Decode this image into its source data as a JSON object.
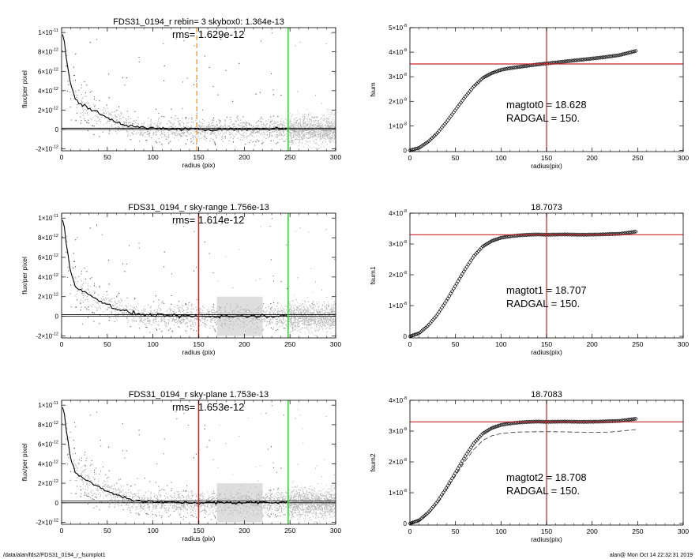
{
  "footer": {
    "path": "/data/alan/fds2/FDS31_0194_r_fsumplot1",
    "stamp": "alan@  Mon Oct 14 22:32:31 2019"
  },
  "colors": {
    "red": "#cc2222",
    "green": "#22dd22",
    "orange": "#f0a050",
    "point_dark": "#555555",
    "point_light": "#a8a8a8"
  },
  "chart_data": [
    {
      "type": "scatter",
      "title": "FDS31_0194_r rebin= 3    skybox0:  1.364e-13",
      "annotation": "rms= 1.629e-12",
      "xlabel": "radius (pix)",
      "ylabel": "flux/per pixel",
      "xlim": [
        0,
        300
      ],
      "ylim": [
        -2.2e-12,
        1.05e-11
      ],
      "xticks": [
        0,
        50,
        100,
        150,
        200,
        250,
        300
      ],
      "xticklabels": [
        "0",
        "50",
        "100",
        "150",
        "200",
        "250",
        "300"
      ],
      "yticks": [
        -2e-12,
        0,
        2e-12,
        4e-12,
        6e-12,
        8e-12,
        1e-11
      ],
      "yticklabels": [
        [
          "-2×10",
          "-12"
        ],
        [
          "0",
          ""
        ],
        [
          "2×10",
          "-12"
        ],
        [
          "4×10",
          "-12"
        ],
        [
          "6×10",
          "-12"
        ],
        [
          "8×10",
          "-12"
        ],
        [
          "1×10",
          "-11"
        ]
      ],
      "vlines": [
        {
          "x": 148,
          "color": "#f0a050",
          "dashed": true
        },
        {
          "x": 248,
          "color": "#22dd22",
          "dashed": false
        }
      ],
      "zero_lines": [
        0,
        1.364e-13
      ],
      "profile": {
        "r": [
          2,
          5,
          10,
          15,
          20,
          30,
          40,
          50,
          60,
          70,
          80,
          90,
          100,
          120,
          150,
          200,
          248
        ],
        "v": [
          9.8e-12,
          7.5e-12,
          4.5e-12,
          3.1e-12,
          2.7e-12,
          2.2e-12,
          1.7e-12,
          1.2e-12,
          8e-13,
          5e-13,
          3e-13,
          1.5e-13,
          1e-13,
          5e-14,
          0,
          2e-14,
          1e-13
        ]
      },
      "band_shading": []
    },
    {
      "type": "line",
      "title": "",
      "xlabel": "radius(pix)",
      "ylabel": "fsum",
      "xlim": [
        0,
        300
      ],
      "ylim": [
        -5e-10,
        5e-08
      ],
      "xticks": [
        0,
        50,
        100,
        150,
        200,
        250,
        300
      ],
      "xticklabels": [
        "0",
        "50",
        "100",
        "150",
        "200",
        "250",
        "300"
      ],
      "yticks": [
        0,
        1e-08,
        2e-08,
        3e-08,
        4e-08,
        5e-08
      ],
      "yticklabels": [
        [
          "0",
          ""
        ],
        [
          "1×10",
          "-8"
        ],
        [
          "2×10",
          "-8"
        ],
        [
          "3×10",
          "-8"
        ],
        [
          "4×10",
          "-8"
        ],
        [
          "5×10",
          "-8"
        ]
      ],
      "vline_x": 150,
      "hline_y": 3.52e-08,
      "annotation_lines": [
        "magtot0 =  18.628",
        "RADGAL =    150."
      ],
      "curve": {
        "x": [
          0,
          10,
          20,
          30,
          40,
          50,
          60,
          70,
          80,
          90,
          100,
          110,
          120,
          130,
          140,
          150,
          170,
          190,
          210,
          230,
          248
        ],
        "y": [
          0,
          1e-09,
          3.5e-09,
          7e-09,
          1.15e-08,
          1.65e-08,
          2.15e-08,
          2.6e-08,
          2.95e-08,
          3.15e-08,
          3.28e-08,
          3.35e-08,
          3.4e-08,
          3.45e-08,
          3.5e-08,
          3.54e-08,
          3.62e-08,
          3.7e-08,
          3.78e-08,
          3.88e-08,
          4.05e-08
        ]
      },
      "dashed_curve": null
    },
    {
      "type": "scatter",
      "title": "FDS31_0194_r sky-range  1.756e-13",
      "annotation": "rms= 1.614e-12",
      "xlabel": "radius (pix)",
      "ylabel": "flux/per pixel",
      "xlim": [
        0,
        300
      ],
      "ylim": [
        -2.2e-12,
        1.05e-11
      ],
      "xticks": [
        0,
        50,
        100,
        150,
        200,
        250,
        300
      ],
      "xticklabels": [
        "0",
        "50",
        "100",
        "150",
        "200",
        "250",
        "300"
      ],
      "yticks": [
        -2e-12,
        0,
        2e-12,
        4e-12,
        6e-12,
        8e-12,
        1e-11
      ],
      "yticklabels": [
        [
          "-2×10",
          "-12"
        ],
        [
          "0",
          ""
        ],
        [
          "2×10",
          "-12"
        ],
        [
          "4×10",
          "-12"
        ],
        [
          "6×10",
          "-12"
        ],
        [
          "8×10",
          "-12"
        ],
        [
          "1×10",
          "-11"
        ]
      ],
      "vlines": [
        {
          "x": 150,
          "color": "#cc2222",
          "dashed": false
        },
        {
          "x": 248,
          "color": "#22dd22",
          "dashed": false
        }
      ],
      "zero_lines": [
        0,
        1.756e-13
      ],
      "profile": {
        "r": [
          2,
          5,
          10,
          15,
          20,
          30,
          40,
          50,
          60,
          70,
          80,
          90,
          100,
          120,
          150,
          200,
          248
        ],
        "v": [
          9.8e-12,
          7.5e-12,
          4.5e-12,
          3.1e-12,
          2.7e-12,
          2.2e-12,
          1.7e-12,
          1.2e-12,
          8e-13,
          5e-13,
          3e-13,
          1.5e-13,
          1e-13,
          5e-14,
          0,
          2e-14,
          1e-13
        ]
      },
      "band_shading": [
        [
          170,
          220
        ]
      ]
    },
    {
      "type": "line",
      "title": "18.7073",
      "xlabel": "radius(pix)",
      "ylabel": "fsum1",
      "xlim": [
        0,
        300
      ],
      "ylim": [
        -5e-10,
        4e-08
      ],
      "xticks": [
        0,
        50,
        100,
        150,
        200,
        250,
        300
      ],
      "xticklabels": [
        "0",
        "50",
        "100",
        "150",
        "200",
        "250",
        "300"
      ],
      "yticks": [
        0,
        1e-08,
        2e-08,
        3e-08,
        4e-08
      ],
      "yticklabels": [
        [
          "0",
          ""
        ],
        [
          "1×10",
          "-8"
        ],
        [
          "2×10",
          "-8"
        ],
        [
          "3×10",
          "-8"
        ],
        [
          "4×10",
          "-8"
        ]
      ],
      "vline_x": 150,
      "hline_y": 3.3e-08,
      "annotation_lines": [
        "magtot1 =  18.707",
        "RADGAL =    150."
      ],
      "curve": {
        "x": [
          0,
          10,
          20,
          30,
          40,
          50,
          60,
          70,
          80,
          90,
          100,
          110,
          120,
          130,
          140,
          150,
          170,
          190,
          210,
          230,
          248
        ],
        "y": [
          0,
          1e-09,
          3.5e-09,
          7e-09,
          1.15e-08,
          1.65e-08,
          2.15e-08,
          2.6e-08,
          2.92e-08,
          3.1e-08,
          3.2e-08,
          3.25e-08,
          3.28e-08,
          3.3e-08,
          3.31e-08,
          3.3e-08,
          3.31e-08,
          3.3e-08,
          3.31e-08,
          3.33e-08,
          3.4e-08
        ]
      },
      "dashed_curve": null
    },
    {
      "type": "scatter",
      "title": "FDS31_0194_r sky-plane  1.753e-13",
      "annotation": "rms= 1.653e-12",
      "xlabel": "radius (pix)",
      "ylabel": "flux/per pixel",
      "xlim": [
        0,
        300
      ],
      "ylim": [
        -2.2e-12,
        1.05e-11
      ],
      "xticks": [
        0,
        50,
        100,
        150,
        200,
        250,
        300
      ],
      "xticklabels": [
        "0",
        "50",
        "100",
        "150",
        "200",
        "250",
        "300"
      ],
      "yticks": [
        -2e-12,
        0,
        2e-12,
        4e-12,
        6e-12,
        8e-12,
        1e-11
      ],
      "yticklabels": [
        [
          "-2×10",
          "-12"
        ],
        [
          "0",
          ""
        ],
        [
          "2×10",
          "-12"
        ],
        [
          "4×10",
          "-12"
        ],
        [
          "6×10",
          "-12"
        ],
        [
          "8×10",
          "-12"
        ],
        [
          "1×10",
          "-11"
        ]
      ],
      "vlines": [
        {
          "x": 150,
          "color": "#cc2222",
          "dashed": false
        },
        {
          "x": 248,
          "color": "#22dd22",
          "dashed": false
        }
      ],
      "zero_lines": [
        0,
        1.753e-13
      ],
      "profile": {
        "r": [
          2,
          5,
          10,
          15,
          20,
          30,
          40,
          50,
          60,
          70,
          80,
          90,
          100,
          120,
          150,
          200,
          248
        ],
        "v": [
          9.8e-12,
          7.5e-12,
          4.5e-12,
          3.1e-12,
          2.7e-12,
          2.2e-12,
          1.7e-12,
          1.2e-12,
          8e-13,
          5e-13,
          3e-13,
          1.5e-13,
          1e-13,
          5e-14,
          0,
          2e-14,
          1e-13
        ]
      },
      "band_shading": [
        [
          170,
          220
        ]
      ]
    },
    {
      "type": "line",
      "title": "18.7083",
      "xlabel": "radius(pix)",
      "ylabel": "fsum2",
      "xlim": [
        0,
        300
      ],
      "ylim": [
        -5e-10,
        4e-08
      ],
      "xticks": [
        0,
        50,
        100,
        150,
        200,
        250,
        300
      ],
      "xticklabels": [
        "0",
        "50",
        "100",
        "150",
        "200",
        "250",
        "300"
      ],
      "yticks": [
        0,
        1e-08,
        2e-08,
        3e-08,
        4e-08
      ],
      "yticklabels": [
        [
          "0",
          ""
        ],
        [
          "1×10",
          "-8"
        ],
        [
          "2×10",
          "-8"
        ],
        [
          "3×10",
          "-8"
        ],
        [
          "4×10",
          "-8"
        ]
      ],
      "vline_x": 150,
      "hline_y": 3.3e-08,
      "annotation_lines": [
        "magtot2 =  18.708",
        "RADGAL =    150."
      ],
      "curve": {
        "x": [
          0,
          10,
          20,
          30,
          40,
          50,
          60,
          70,
          80,
          90,
          100,
          110,
          120,
          130,
          140,
          150,
          170,
          190,
          210,
          230,
          248
        ],
        "y": [
          0,
          1e-09,
          3.5e-09,
          7e-09,
          1.15e-08,
          1.65e-08,
          2.15e-08,
          2.6e-08,
          2.92e-08,
          3.1e-08,
          3.2e-08,
          3.25e-08,
          3.28e-08,
          3.3e-08,
          3.31e-08,
          3.3e-08,
          3.31e-08,
          3.3e-08,
          3.31e-08,
          3.33e-08,
          3.4e-08
        ]
      },
      "dashed_curve": {
        "x": [
          0,
          10,
          20,
          30,
          40,
          50,
          60,
          70,
          80,
          90,
          100,
          110,
          120,
          140,
          160,
          180,
          200,
          220,
          248
        ],
        "y": [
          0,
          8e-10,
          3e-09,
          6.5e-09,
          1.1e-08,
          1.55e-08,
          2e-08,
          2.4e-08,
          2.7e-08,
          2.85e-08,
          2.92e-08,
          2.95e-08,
          2.97e-08,
          2.98e-08,
          2.98e-08,
          2.97e-08,
          2.96e-08,
          2.97e-08,
          3.05e-08
        ]
      }
    }
  ]
}
